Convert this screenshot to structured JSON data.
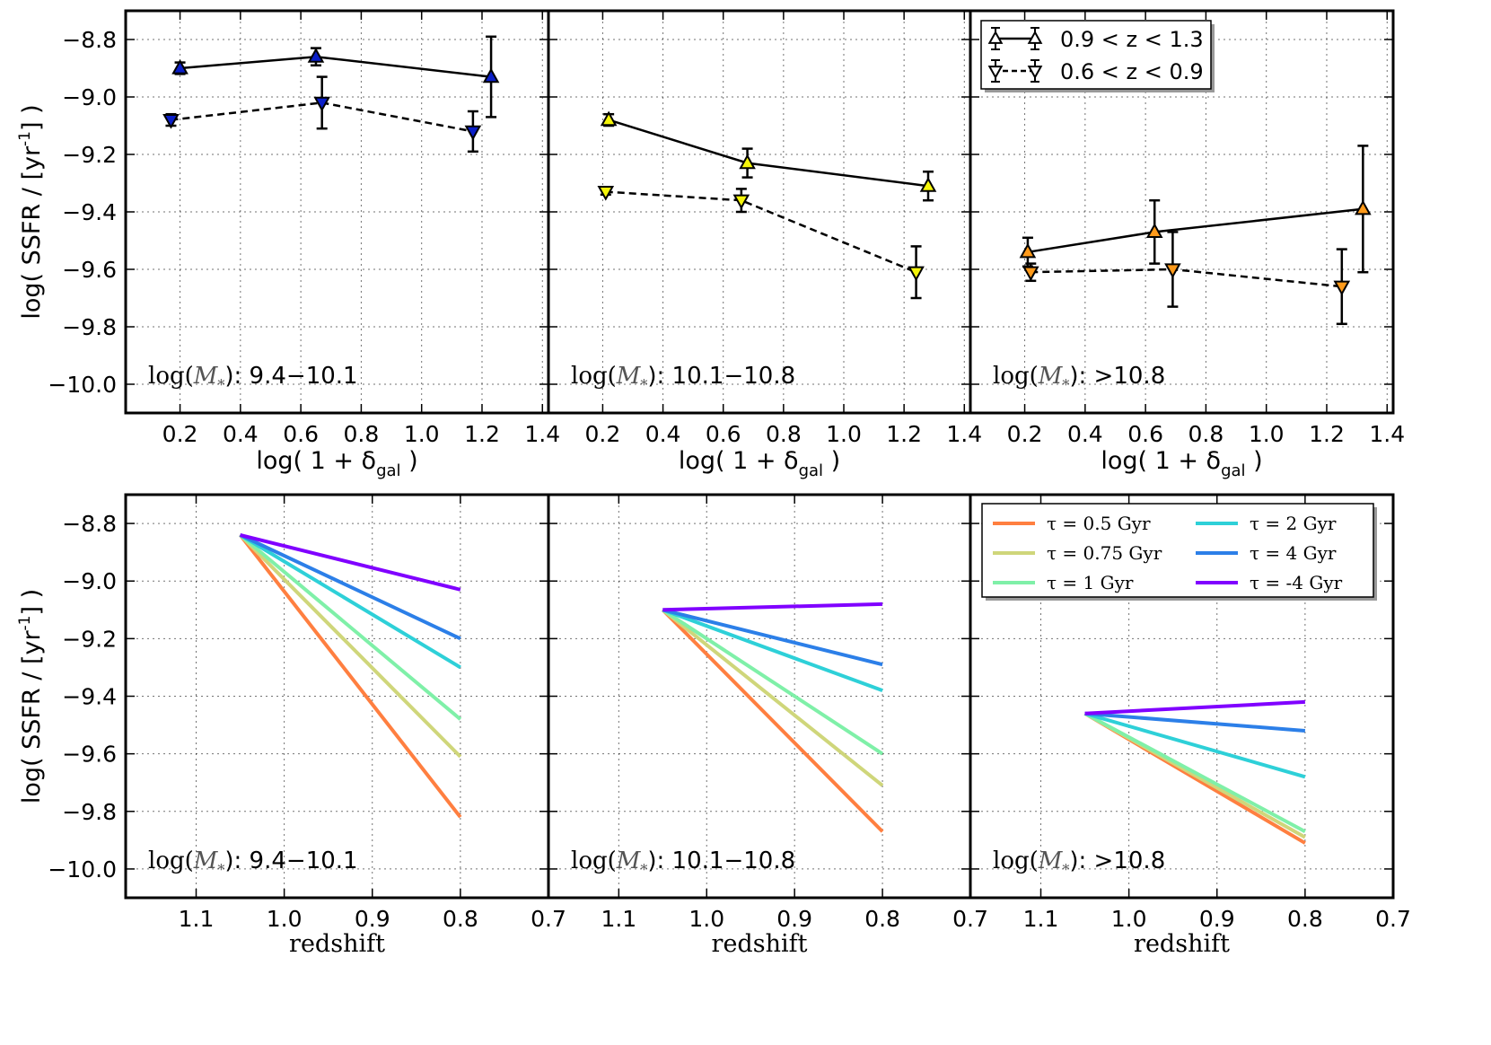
{
  "figure": {
    "top_xlabel": "log( 1 + δ",
    "top_xlabel_sub": "gal",
    "top_xlabel_end": " )",
    "bottom_xlabel": "redshift",
    "ylabel_pre": "log( SSFR / [yr",
    "ylabel_sup": "-1",
    "ylabel_post": "] )",
    "panel_labels": [
      {
        "pre": "log(",
        "sym": "M",
        "sub": "*",
        "post": "): 9.4−10.1"
      },
      {
        "pre": "log(",
        "sym": "M",
        "sub": "*",
        "post": "): 10.1−10.8"
      },
      {
        "pre": "log(",
        "sym": "M",
        "sub": "*",
        "post": "): >10.8"
      }
    ],
    "top_legend": [
      {
        "label": "0.9 < z < 1.3",
        "marker": "up-triangle",
        "linestyle": "solid"
      },
      {
        "label": "0.6 < z < 0.9",
        "marker": "down-triangle",
        "linestyle": "dashed"
      }
    ],
    "bottom_legend": [
      {
        "label": "τ = 0.5 Gyr",
        "color": "#ff7f40"
      },
      {
        "label": "τ = 0.75 Gyr",
        "color": "#cfd67a"
      },
      {
        "label": "τ = 1 Gyr",
        "color": "#7ff0a8"
      },
      {
        "label": "τ = 2 Gyr",
        "color": "#2ed0d8"
      },
      {
        "label": "τ = 4 Gyr",
        "color": "#2c7fe8"
      },
      {
        "label": "τ = -4 Gyr",
        "color": "#8000ff"
      }
    ]
  },
  "chart_data": [
    {
      "type": "line",
      "panel": "top-left",
      "xlim": [
        0.02,
        1.42
      ],
      "ylim": [
        -10.1,
        -8.7
      ],
      "xticks": [
        "0.2",
        "0.4",
        "0.6",
        "0.8",
        "1.0",
        "1.2",
        "1.4"
      ],
      "yticks": [
        "−8.8",
        "−9.0",
        "−9.2",
        "−9.4",
        "−9.6",
        "−9.8",
        "−10.0"
      ],
      "grid": true,
      "marker_color": "#0b1fc8",
      "series": [
        {
          "name": "0.9 < z < 1.3",
          "x": [
            0.2,
            0.65,
            1.23
          ],
          "y": [
            -8.9,
            -8.86,
            -8.93
          ],
          "yerr": [
            0.02,
            0.03,
            0.14
          ]
        },
        {
          "name": "0.6 < z < 0.9",
          "x": [
            0.17,
            0.67,
            1.17
          ],
          "y": [
            -9.08,
            -9.02,
            -9.12
          ],
          "yerr": [
            0.02,
            0.09,
            0.07
          ]
        }
      ]
    },
    {
      "type": "line",
      "panel": "top-middle",
      "xlim": [
        0.02,
        1.42
      ],
      "ylim": [
        -10.1,
        -8.7
      ],
      "xticks": [
        "0.2",
        "0.4",
        "0.6",
        "0.8",
        "1.0",
        "1.2",
        "1.4"
      ],
      "grid": true,
      "marker_color": "#f5f50a",
      "series": [
        {
          "name": "0.9 < z < 1.3",
          "x": [
            0.22,
            0.68,
            1.28
          ],
          "y": [
            -9.08,
            -9.23,
            -9.31
          ],
          "yerr": [
            0.02,
            0.05,
            0.05
          ]
        },
        {
          "name": "0.6 < z < 0.9",
          "x": [
            0.21,
            0.66,
            1.24
          ],
          "y": [
            -9.33,
            -9.36,
            -9.61
          ],
          "yerr": [
            0.01,
            0.04,
            0.09
          ]
        }
      ]
    },
    {
      "type": "line",
      "panel": "top-right",
      "xlim": [
        0.02,
        1.42
      ],
      "ylim": [
        -10.1,
        -8.7
      ],
      "xticks": [
        "0.2",
        "0.4",
        "0.6",
        "0.8",
        "1.0",
        "1.2",
        "1.4"
      ],
      "grid": true,
      "marker_color": "#ff9a1a",
      "legend": "top-right",
      "series": [
        {
          "name": "0.9 < z < 1.3",
          "x": [
            0.21,
            0.63,
            1.32
          ],
          "y": [
            -9.54,
            -9.47,
            -9.39
          ],
          "yerr": [
            0.05,
            0.11,
            0.22
          ]
        },
        {
          "name": "0.6 < z < 0.9",
          "x": [
            0.22,
            0.69,
            1.25
          ],
          "y": [
            -9.61,
            -9.6,
            -9.66
          ],
          "yerr": [
            0.03,
            0.13,
            0.13
          ]
        }
      ]
    },
    {
      "type": "line",
      "panel": "bottom-left",
      "xlim": [
        1.18,
        0.7
      ],
      "ylim": [
        -10.1,
        -8.7
      ],
      "xticks": [
        "1.1",
        "1.0",
        "0.9",
        "0.8",
        "0.7"
      ],
      "yticks": [
        "−8.8",
        "−9.0",
        "−9.2",
        "−9.4",
        "−9.6",
        "−9.8",
        "−10.0"
      ],
      "grid": true,
      "series": [
        {
          "name": "τ = 0.5 Gyr",
          "x": [
            1.05,
            0.8
          ],
          "y": [
            -8.84,
            -9.82
          ]
        },
        {
          "name": "τ = 0.75 Gyr",
          "x": [
            1.05,
            0.8
          ],
          "y": [
            -8.84,
            -9.61
          ]
        },
        {
          "name": "τ = 1 Gyr",
          "x": [
            1.05,
            0.8
          ],
          "y": [
            -8.84,
            -9.48
          ]
        },
        {
          "name": "τ = 2 Gyr",
          "x": [
            1.05,
            0.8
          ],
          "y": [
            -8.84,
            -9.3
          ]
        },
        {
          "name": "τ = 4 Gyr",
          "x": [
            1.05,
            0.8
          ],
          "y": [
            -8.84,
            -9.2
          ]
        },
        {
          "name": "τ = -4 Gyr",
          "x": [
            1.05,
            0.8
          ],
          "y": [
            -8.84,
            -9.03
          ]
        }
      ]
    },
    {
      "type": "line",
      "panel": "bottom-middle",
      "xlim": [
        1.18,
        0.7
      ],
      "ylim": [
        -10.1,
        -8.7
      ],
      "xticks": [
        "1.1",
        "1.0",
        "0.9",
        "0.8",
        "0.7"
      ],
      "grid": true,
      "series": [
        {
          "name": "τ = 0.5 Gyr",
          "x": [
            1.05,
            0.8
          ],
          "y": [
            -9.1,
            -9.87
          ]
        },
        {
          "name": "τ = 0.75 Gyr",
          "x": [
            1.05,
            0.8
          ],
          "y": [
            -9.1,
            -9.71
          ]
        },
        {
          "name": "τ = 1 Gyr",
          "x": [
            1.05,
            0.8
          ],
          "y": [
            -9.1,
            -9.6
          ]
        },
        {
          "name": "τ = 2 Gyr",
          "x": [
            1.05,
            0.8
          ],
          "y": [
            -9.1,
            -9.38
          ]
        },
        {
          "name": "τ = 4 Gyr",
          "x": [
            1.05,
            0.8
          ],
          "y": [
            -9.1,
            -9.29
          ]
        },
        {
          "name": "τ = -4 Gyr",
          "x": [
            1.05,
            0.8
          ],
          "y": [
            -9.1,
            -9.08
          ]
        }
      ]
    },
    {
      "type": "line",
      "panel": "bottom-right",
      "xlim": [
        1.18,
        0.7
      ],
      "ylim": [
        -10.1,
        -8.7
      ],
      "xticks": [
        "1.1",
        "1.0",
        "0.9",
        "0.8",
        "0.7"
      ],
      "grid": true,
      "legend": "top-right",
      "series": [
        {
          "name": "τ = 0.5 Gyr",
          "x": [
            1.05,
            0.8
          ],
          "y": [
            -9.46,
            -9.91
          ]
        },
        {
          "name": "τ = 0.75 Gyr",
          "x": [
            1.05,
            0.8
          ],
          "y": [
            -9.46,
            -9.89
          ]
        },
        {
          "name": "τ = 1 Gyr",
          "x": [
            1.05,
            0.8
          ],
          "y": [
            -9.46,
            -9.87
          ]
        },
        {
          "name": "τ = 2 Gyr",
          "x": [
            1.05,
            0.8
          ],
          "y": [
            -9.46,
            -9.68
          ]
        },
        {
          "name": "τ = 4 Gyr",
          "x": [
            1.05,
            0.8
          ],
          "y": [
            -9.46,
            -9.52
          ]
        },
        {
          "name": "τ = -4 Gyr",
          "x": [
            1.05,
            0.8
          ],
          "y": [
            -9.46,
            -9.42
          ]
        }
      ]
    }
  ]
}
